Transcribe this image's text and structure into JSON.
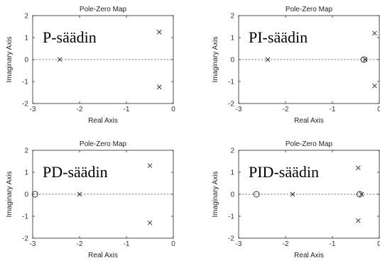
{
  "chart_data": [
    {
      "type": "scatter",
      "title": "Pole-Zero Map",
      "annotation": "P-säädin",
      "xlabel": "Real Axis",
      "ylabel": "Imaginary Axis",
      "xlim": [
        -3,
        0
      ],
      "ylim": [
        -2,
        2
      ],
      "xticks": [
        -3,
        -2,
        -1,
        0
      ],
      "yticks": [
        -2,
        -1,
        0,
        1,
        2
      ],
      "poles": [
        [
          -2.42,
          0
        ],
        [
          -0.3,
          1.25
        ],
        [
          -0.3,
          -1.25
        ]
      ],
      "zeros": []
    },
    {
      "type": "scatter",
      "title": "Pole-Zero Map",
      "annotation": "PI-säädin",
      "xlabel": "Real Axis",
      "ylabel": "Imaginary Axis",
      "xlim": [
        -3,
        0
      ],
      "ylim": [
        -2,
        2
      ],
      "xticks": [
        -3,
        -2,
        -1,
        0
      ],
      "yticks": [
        -2,
        -1,
        0,
        1,
        2
      ],
      "poles": [
        [
          -2.38,
          0
        ],
        [
          -0.3,
          0
        ],
        [
          -0.1,
          1.2
        ],
        [
          -0.1,
          -1.2
        ]
      ],
      "zeros": [
        [
          -0.33,
          0
        ]
      ]
    },
    {
      "type": "scatter",
      "title": "Pole-Zero Map",
      "annotation": "PD-säädin",
      "xlabel": "Real Axis",
      "ylabel": "Imaginary Axis",
      "xlim": [
        -3,
        0
      ],
      "ylim": [
        -2,
        2
      ],
      "xticks": [
        -3,
        -2,
        -1,
        0
      ],
      "yticks": [
        -2,
        -1,
        0,
        1,
        2
      ],
      "poles": [
        [
          -2.0,
          0
        ],
        [
          -0.5,
          1.3
        ],
        [
          -0.5,
          -1.3
        ]
      ],
      "zeros": [
        [
          -2.95,
          0
        ]
      ]
    },
    {
      "type": "scatter",
      "title": "Pole-Zero Map",
      "annotation": "PID-säädin",
      "xlabel": "Real Axis",
      "ylabel": "Imaginary Axis",
      "xlim": [
        -3,
        0
      ],
      "ylim": [
        -2,
        2
      ],
      "xticks": [
        -3,
        -2,
        -1,
        0
      ],
      "yticks": [
        -2,
        -1,
        0,
        1,
        2
      ],
      "poles": [
        [
          -1.85,
          0
        ],
        [
          -0.38,
          0
        ],
        [
          -0.45,
          1.2
        ],
        [
          -0.45,
          -1.2
        ]
      ],
      "zeros": [
        [
          -2.62,
          0
        ],
        [
          -0.42,
          0
        ]
      ]
    }
  ]
}
